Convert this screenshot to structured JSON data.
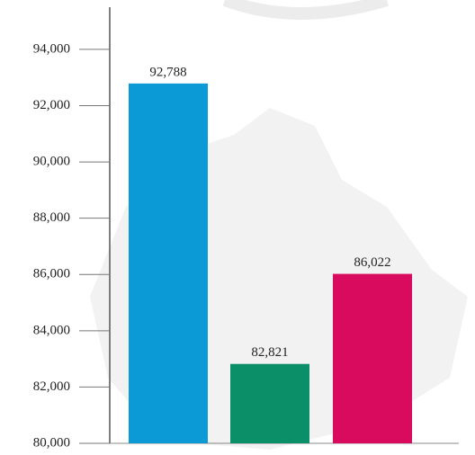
{
  "chart_data": {
    "type": "bar",
    "categories": [
      null,
      null,
      null
    ],
    "values": [
      92788,
      82821,
      86022
    ],
    "value_labels": [
      "92,788",
      "82,821",
      "86,022"
    ],
    "colors": [
      "#0b9ad6",
      "#0a8f68",
      "#d80b5e"
    ],
    "ylim": [
      80000,
      95500
    ],
    "yticks": [
      {
        "value": 80000,
        "label": "80,000"
      },
      {
        "value": 82000,
        "label": "82,000"
      },
      {
        "value": 84000,
        "label": "84,000"
      },
      {
        "value": 86000,
        "label": "86,000"
      },
      {
        "value": 88000,
        "label": "88,000"
      },
      {
        "value": 90000,
        "label": "90,000"
      },
      {
        "value": 92000,
        "label": "92,000"
      },
      {
        "value": 94000,
        "label": "94,000"
      }
    ]
  }
}
